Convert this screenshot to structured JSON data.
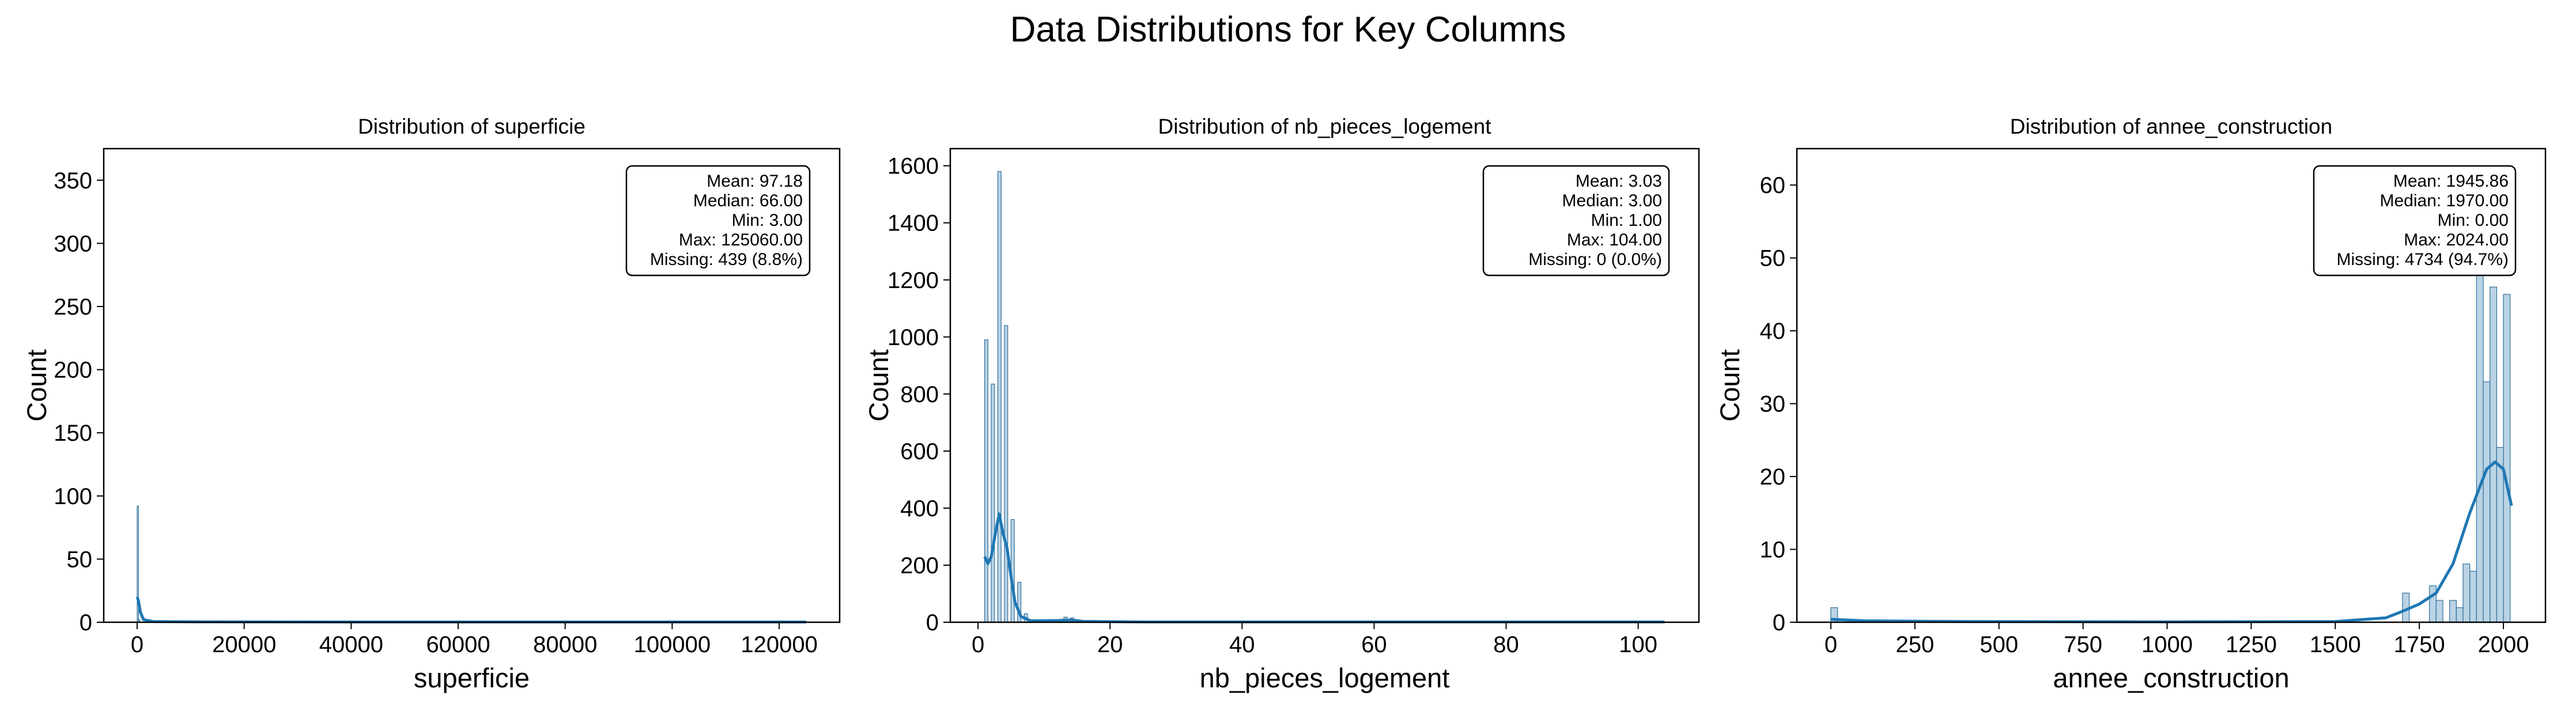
{
  "figure": {
    "suptitle": "Data Distributions for Key Columns"
  },
  "colors": {
    "bar_fill": "#aecbe0",
    "bar_edge": "#2f6f9a",
    "kde_line": "#1f77b4",
    "frame": "#000000"
  },
  "chart_data": [
    {
      "type": "histogram",
      "title": "Distribution of superficie",
      "xlabel": "superficie",
      "ylabel": "Count",
      "xlim": [
        -6250,
        131300
      ],
      "ylim": [
        0,
        375
      ],
      "xticks": [
        0,
        20000,
        40000,
        60000,
        80000,
        100000,
        120000
      ],
      "yticks": [
        0,
        50,
        100,
        150,
        200,
        250,
        300,
        350
      ],
      "bins": [
        {
          "x0": 0,
          "x1": 250,
          "count": 92
        },
        {
          "x0": 250,
          "x1": 500,
          "count": 2
        }
      ],
      "kde": [
        [
          0,
          20
        ],
        [
          250,
          17
        ],
        [
          600,
          8
        ],
        [
          1200,
          2
        ],
        [
          3000,
          0.6
        ],
        [
          10000,
          0.3
        ],
        [
          40000,
          0.2
        ],
        [
          80000,
          0.2
        ],
        [
          125060,
          0.2
        ]
      ],
      "stats": [
        "Mean: 97.18",
        "Median: 66.00",
        "Min: 3.00",
        "Max: 125060.00",
        "Missing: 439 (8.8%)"
      ]
    },
    {
      "type": "histogram",
      "title": "Distribution of nb_pieces_logement",
      "xlabel": "nb_pieces_logement",
      "ylabel": "Count",
      "xlim": [
        -4.2,
        109.2
      ],
      "ylim": [
        0,
        1660
      ],
      "xticks": [
        0,
        20,
        40,
        60,
        80,
        100
      ],
      "yticks": [
        0,
        200,
        400,
        600,
        800,
        1000,
        1200,
        1400,
        1600
      ],
      "bins": [
        {
          "x0": 1.0,
          "x1": 1.5,
          "count": 990
        },
        {
          "x0": 2.0,
          "x1": 2.5,
          "count": 835
        },
        {
          "x0": 3.0,
          "x1": 3.5,
          "count": 1580
        },
        {
          "x0": 4.0,
          "x1": 4.5,
          "count": 1040
        },
        {
          "x0": 5.0,
          "x1": 5.5,
          "count": 360
        },
        {
          "x0": 6.0,
          "x1": 6.5,
          "count": 140
        },
        {
          "x0": 7.0,
          "x1": 7.5,
          "count": 30
        },
        {
          "x0": 13.0,
          "x1": 13.5,
          "count": 18
        },
        {
          "x0": 14.0,
          "x1": 14.5,
          "count": 15
        }
      ],
      "kde": [
        [
          1,
          230
        ],
        [
          1.5,
          205
        ],
        [
          2,
          230
        ],
        [
          2.7,
          320
        ],
        [
          3.2,
          380
        ],
        [
          3.8,
          310
        ],
        [
          4.4,
          260
        ],
        [
          5,
          160
        ],
        [
          5.6,
          70
        ],
        [
          6.5,
          20
        ],
        [
          8,
          5
        ],
        [
          12,
          6
        ],
        [
          14,
          8
        ],
        [
          16,
          3
        ],
        [
          25,
          1
        ],
        [
          60,
          1
        ],
        [
          104,
          1
        ]
      ],
      "stats": [
        "Mean: 3.03",
        "Median: 3.00",
        "Min: 1.00",
        "Max: 104.00",
        "Missing: 0 (0.0%)"
      ]
    },
    {
      "type": "histogram",
      "title": "Distribution of annee_construction",
      "xlabel": "annee_construction",
      "ylabel": "Count",
      "xlim": [
        -101,
        2125
      ],
      "ylim": [
        0,
        65
      ],
      "xticks": [
        0,
        250,
        500,
        750,
        1000,
        1250,
        1500,
        1750,
        2000
      ],
      "yticks": [
        0,
        10,
        20,
        30,
        40,
        50,
        60
      ],
      "bins": [
        {
          "x0": 0,
          "x1": 20,
          "count": 2
        },
        {
          "x0": 1700,
          "x1": 1720,
          "count": 4
        },
        {
          "x0": 1780,
          "x1": 1800,
          "count": 5
        },
        {
          "x0": 1800,
          "x1": 1820,
          "count": 3
        },
        {
          "x0": 1840,
          "x1": 1860,
          "count": 3
        },
        {
          "x0": 1860,
          "x1": 1880,
          "count": 2
        },
        {
          "x0": 1880,
          "x1": 1900,
          "count": 8
        },
        {
          "x0": 1900,
          "x1": 1920,
          "count": 7
        },
        {
          "x0": 1920,
          "x1": 1940,
          "count": 49
        },
        {
          "x0": 1940,
          "x1": 1960,
          "count": 33
        },
        {
          "x0": 1960,
          "x1": 1980,
          "count": 46
        },
        {
          "x0": 1980,
          "x1": 2000,
          "count": 24
        },
        {
          "x0": 2000,
          "x1": 2020,
          "count": 45
        }
      ],
      "kde": [
        [
          0,
          0.4
        ],
        [
          100,
          0.2
        ],
        [
          400,
          0.1
        ],
        [
          1000,
          0.05
        ],
        [
          1500,
          0.1
        ],
        [
          1650,
          0.6
        ],
        [
          1700,
          1.5
        ],
        [
          1750,
          2.5
        ],
        [
          1800,
          4
        ],
        [
          1850,
          8
        ],
        [
          1900,
          15
        ],
        [
          1950,
          21
        ],
        [
          1975,
          22
        ],
        [
          2000,
          21
        ],
        [
          2024,
          16
        ]
      ],
      "stats": [
        "Mean: 1945.86",
        "Median: 1970.00",
        "Min: 0.00",
        "Max: 2024.00",
        "Missing: 4734 (94.7%)"
      ]
    }
  ]
}
